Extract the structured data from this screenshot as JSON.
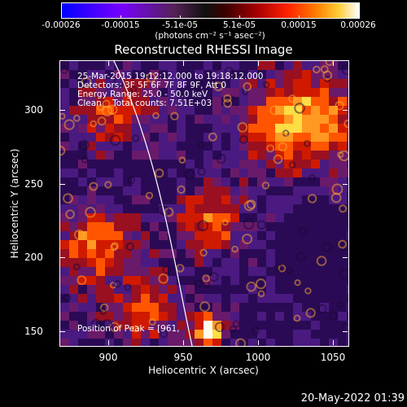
{
  "colorbar": {
    "labels": [
      "-0.00026",
      "-0.00015",
      "-5.1e-05",
      "5.1e-05",
      "0.00015",
      "0.00026"
    ],
    "units": "(photons cm⁻² s⁻¹ asec⁻²)"
  },
  "title": "Reconstructed RHESSI Image",
  "info": {
    "line1": "25-Mar-2015 19:12:12.000 to 19:18:12.000",
    "line2": "Detectors: 3F 5F 6F 7F 8F 9F, Att 0",
    "line3": "Energy Range: 25.0 - 50.0 keV",
    "line4": "Clean    Total counts: 7.51E+03",
    "peak": "Position of Peak = [961,"
  },
  "axes": {
    "xlabel": "Heliocentric X (arcsec)",
    "ylabel": "Heliocentric Y (arcsec)",
    "xticks": [
      "900",
      "950",
      "1000",
      "1050"
    ],
    "yticks": [
      "150",
      "200",
      "250",
      "300"
    ]
  },
  "timestamp": "20-May-2022 01:39",
  "colors": {
    "limb": "#ffffff",
    "background": "#000000"
  }
}
